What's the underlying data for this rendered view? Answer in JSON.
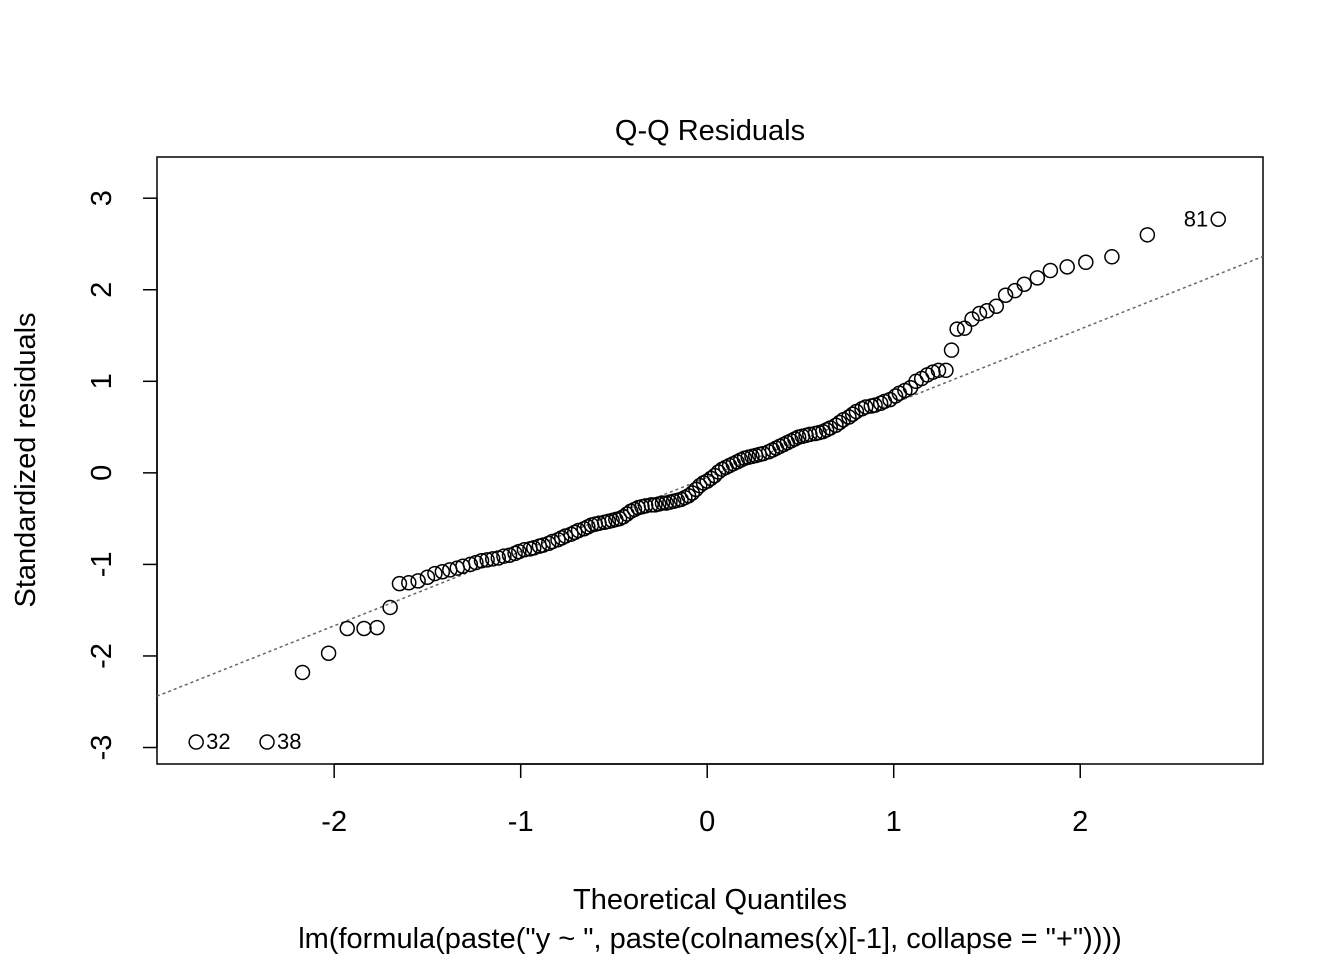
{
  "chart_data": {
    "type": "scatter",
    "title": "Q-Q Residuals",
    "xlabel": "Theoretical Quantiles",
    "ylabel": "Standardized residuals",
    "subtitle": "lm(formula(paste(\"y ~ \", paste(colnames(x)[-1], collapse = \"+\"))))",
    "xlim": [
      -2.95,
      2.98
    ],
    "ylim": [
      -3.18,
      3.45
    ],
    "x_ticks": [
      -2,
      -1,
      0,
      1,
      2
    ],
    "y_ticks": [
      -3,
      -2,
      -1,
      0,
      1,
      2,
      3
    ],
    "x_tick_labels": [
      "-2",
      "-1",
      "0",
      "1",
      "2"
    ],
    "y_tick_labels": [
      "-3",
      "-2",
      "-1",
      "0",
      "1",
      "2",
      "3"
    ],
    "reference_line": {
      "intercept": -0.05,
      "slope": 0.81,
      "style": "dotted",
      "color": "#666666"
    },
    "grid": false,
    "legend": "none",
    "marker": "open-circle",
    "point_color": "#000000",
    "points": [
      [
        -2.74,
        -2.94
      ],
      [
        -2.36,
        -2.94
      ],
      [
        -2.17,
        -2.18
      ],
      [
        -2.03,
        -1.97
      ],
      [
        -1.93,
        -1.7
      ],
      [
        -1.84,
        -1.7
      ],
      [
        -1.77,
        -1.69
      ],
      [
        -1.7,
        -1.47
      ],
      [
        -1.65,
        -1.21
      ],
      [
        -1.6,
        -1.2
      ],
      [
        -1.55,
        -1.18
      ],
      [
        -1.5,
        -1.14
      ],
      [
        -1.46,
        -1.1
      ],
      [
        -1.42,
        -1.08
      ],
      [
        -1.38,
        -1.06
      ],
      [
        -1.34,
        -1.04
      ],
      [
        -1.31,
        -1.02
      ],
      [
        -1.27,
        -1.0
      ],
      [
        -1.24,
        -0.98
      ],
      [
        -1.21,
        -0.96
      ],
      [
        -1.18,
        -0.95
      ],
      [
        -1.15,
        -0.94
      ],
      [
        -1.12,
        -0.93
      ],
      [
        -1.09,
        -0.91
      ],
      [
        -1.06,
        -0.9
      ],
      [
        -1.03,
        -0.88
      ],
      [
        -1.01,
        -0.86
      ],
      [
        -0.98,
        -0.84
      ],
      [
        -0.95,
        -0.83
      ],
      [
        -0.93,
        -0.82
      ],
      [
        -0.9,
        -0.8
      ],
      [
        -0.88,
        -0.79
      ],
      [
        -0.85,
        -0.77
      ],
      [
        -0.83,
        -0.75
      ],
      [
        -0.8,
        -0.73
      ],
      [
        -0.78,
        -0.71
      ],
      [
        -0.76,
        -0.69
      ],
      [
        -0.73,
        -0.67
      ],
      [
        -0.71,
        -0.65
      ],
      [
        -0.69,
        -0.63
      ],
      [
        -0.66,
        -0.61
      ],
      [
        -0.64,
        -0.59
      ],
      [
        -0.62,
        -0.57
      ],
      [
        -0.6,
        -0.56
      ],
      [
        -0.58,
        -0.55
      ],
      [
        -0.55,
        -0.54
      ],
      [
        -0.53,
        -0.53
      ],
      [
        -0.51,
        -0.52
      ],
      [
        -0.49,
        -0.51
      ],
      [
        -0.47,
        -0.5
      ],
      [
        -0.45,
        -0.48
      ],
      [
        -0.43,
        -0.45
      ],
      [
        -0.41,
        -0.42
      ],
      [
        -0.39,
        -0.4
      ],
      [
        -0.37,
        -0.38
      ],
      [
        -0.35,
        -0.37
      ],
      [
        -0.33,
        -0.36
      ],
      [
        -0.3,
        -0.35
      ],
      [
        -0.28,
        -0.35
      ],
      [
        -0.26,
        -0.34
      ],
      [
        -0.24,
        -0.33
      ],
      [
        -0.22,
        -0.33
      ],
      [
        -0.2,
        -0.32
      ],
      [
        -0.18,
        -0.31
      ],
      [
        -0.16,
        -0.3
      ],
      [
        -0.14,
        -0.29
      ],
      [
        -0.12,
        -0.27
      ],
      [
        -0.1,
        -0.25
      ],
      [
        -0.08,
        -0.22
      ],
      [
        -0.06,
        -0.18
      ],
      [
        -0.04,
        -0.14
      ],
      [
        -0.02,
        -0.11
      ],
      [
        0.0,
        -0.09
      ],
      [
        0.02,
        -0.06
      ],
      [
        0.04,
        -0.03
      ],
      [
        0.06,
        0.01
      ],
      [
        0.08,
        0.04
      ],
      [
        0.1,
        0.06
      ],
      [
        0.12,
        0.08
      ],
      [
        0.14,
        0.1
      ],
      [
        0.16,
        0.12
      ],
      [
        0.18,
        0.14
      ],
      [
        0.2,
        0.16
      ],
      [
        0.22,
        0.17
      ],
      [
        0.24,
        0.18
      ],
      [
        0.26,
        0.19
      ],
      [
        0.28,
        0.2
      ],
      [
        0.3,
        0.21
      ],
      [
        0.33,
        0.23
      ],
      [
        0.35,
        0.25
      ],
      [
        0.37,
        0.27
      ],
      [
        0.39,
        0.29
      ],
      [
        0.41,
        0.31
      ],
      [
        0.43,
        0.33
      ],
      [
        0.45,
        0.35
      ],
      [
        0.47,
        0.37
      ],
      [
        0.49,
        0.39
      ],
      [
        0.51,
        0.4
      ],
      [
        0.53,
        0.41
      ],
      [
        0.55,
        0.42
      ],
      [
        0.58,
        0.43
      ],
      [
        0.6,
        0.44
      ],
      [
        0.62,
        0.45
      ],
      [
        0.64,
        0.47
      ],
      [
        0.66,
        0.49
      ],
      [
        0.69,
        0.52
      ],
      [
        0.71,
        0.55
      ],
      [
        0.73,
        0.58
      ],
      [
        0.76,
        0.61
      ],
      [
        0.78,
        0.64
      ],
      [
        0.8,
        0.67
      ],
      [
        0.83,
        0.7
      ],
      [
        0.85,
        0.72
      ],
      [
        0.88,
        0.73
      ],
      [
        0.9,
        0.74
      ],
      [
        0.93,
        0.76
      ],
      [
        0.95,
        0.78
      ],
      [
        0.98,
        0.8
      ],
      [
        1.01,
        0.84
      ],
      [
        1.03,
        0.87
      ],
      [
        1.06,
        0.9
      ],
      [
        1.09,
        0.93
      ],
      [
        1.12,
        1.0
      ],
      [
        1.15,
        1.03
      ],
      [
        1.18,
        1.07
      ],
      [
        1.21,
        1.1
      ],
      [
        1.24,
        1.12
      ],
      [
        1.28,
        1.12
      ],
      [
        1.31,
        1.34
      ],
      [
        1.34,
        1.57
      ],
      [
        1.38,
        1.58
      ],
      [
        1.42,
        1.68
      ],
      [
        1.46,
        1.74
      ],
      [
        1.5,
        1.77
      ],
      [
        1.55,
        1.82
      ],
      [
        1.6,
        1.94
      ],
      [
        1.65,
        1.99
      ],
      [
        1.7,
        2.06
      ],
      [
        1.77,
        2.13
      ],
      [
        1.84,
        2.21
      ],
      [
        1.93,
        2.25
      ],
      [
        2.03,
        2.3
      ],
      [
        2.17,
        2.36
      ],
      [
        2.36,
        2.6
      ],
      [
        2.74,
        2.77
      ]
    ],
    "labeled_points": [
      {
        "label": "81",
        "x": 2.74,
        "y": 2.77,
        "side": "left"
      },
      {
        "label": "32",
        "x": -2.74,
        "y": -2.94,
        "side": "right"
      },
      {
        "label": "38",
        "x": -2.36,
        "y": -2.94,
        "side": "right"
      }
    ]
  }
}
